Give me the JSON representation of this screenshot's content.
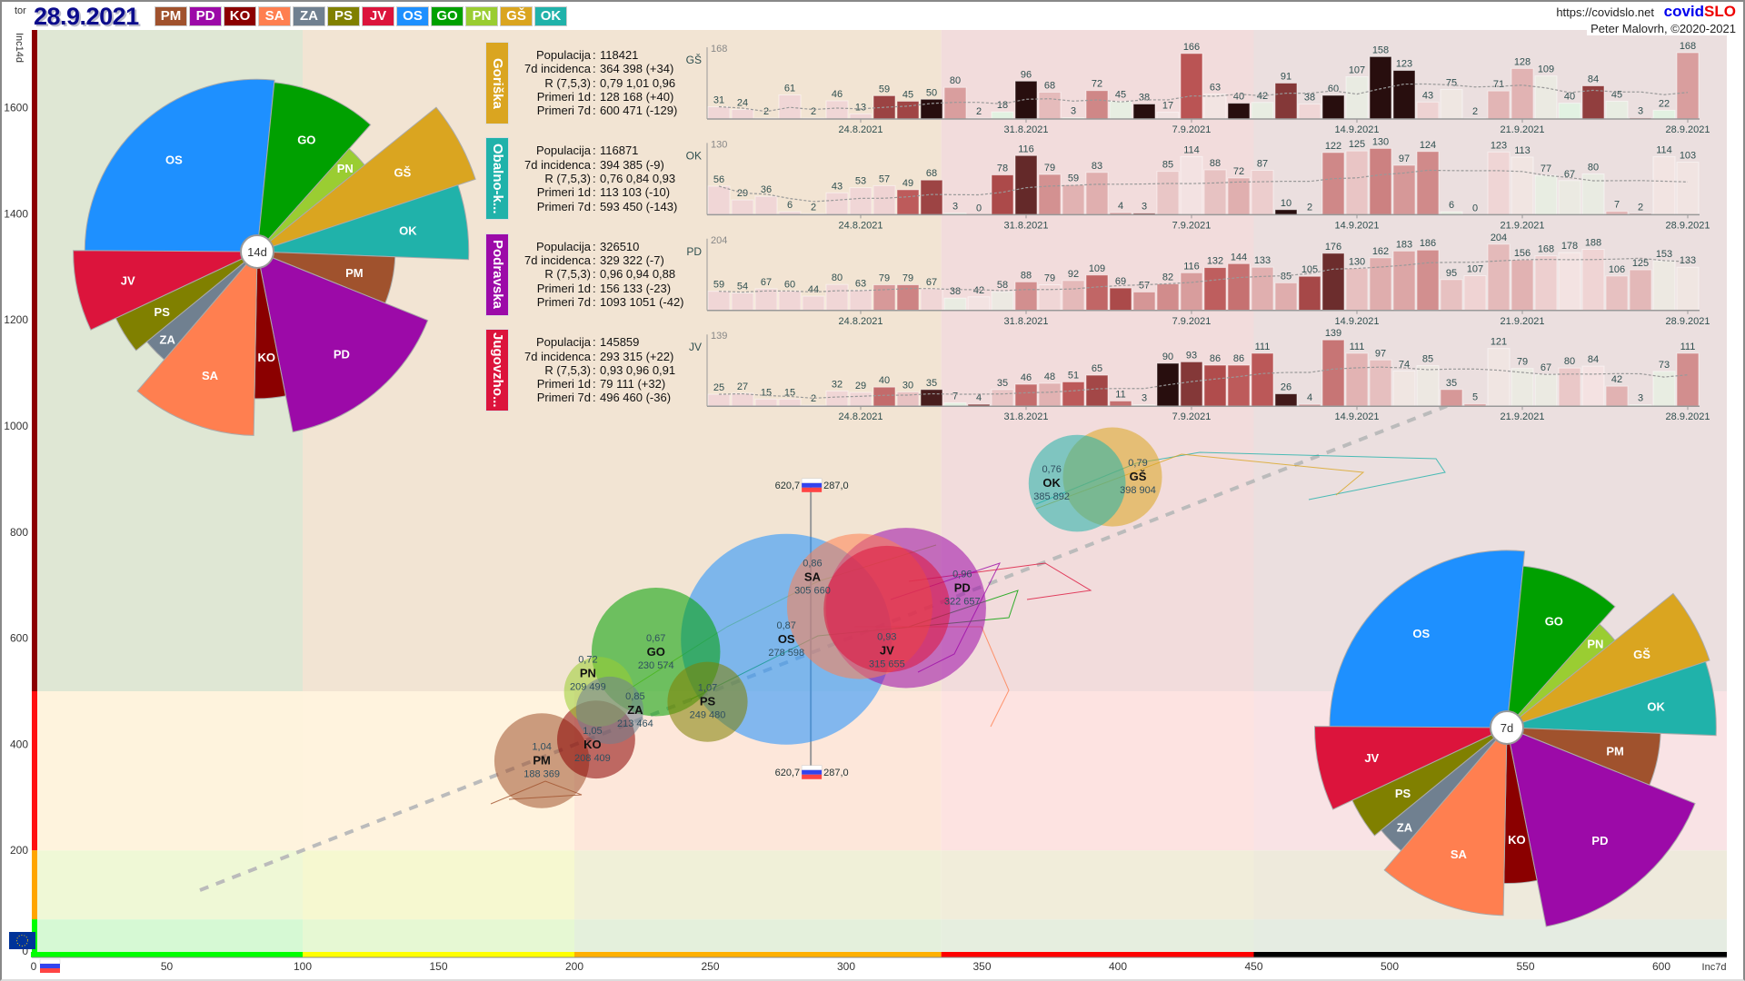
{
  "header": {
    "weekday": "tor",
    "date": "28.9.2021",
    "url": "https://covidslo.net",
    "brand_a": "covid",
    "brand_b": "SLO",
    "author": "Peter Malovrh, ©2020-2021"
  },
  "regions": [
    {
      "code": "PM",
      "color": "#a0522d"
    },
    {
      "code": "PD",
      "color": "#9c0aa8"
    },
    {
      "code": "KO",
      "color": "#8b0000"
    },
    {
      "code": "SA",
      "color": "#ff7f50"
    },
    {
      "code": "ZA",
      "color": "#708090"
    },
    {
      "code": "PS",
      "color": "#808000"
    },
    {
      "code": "JV",
      "color": "#dc143c"
    },
    {
      "code": "OS",
      "color": "#1e90ff"
    },
    {
      "code": "GO",
      "color": "#00a000"
    },
    {
      "code": "PN",
      "color": "#9acd32"
    },
    {
      "code": "GŠ",
      "color": "#daa520"
    },
    {
      "code": "OK",
      "color": "#20b2aa"
    }
  ],
  "chart_data": [
    {
      "type": "scatter",
      "title": "",
      "xlabel": "Inc7d",
      "ylabel": "Inc14d",
      "xlim": [
        0,
        625
      ],
      "ylim": [
        0,
        1700
      ],
      "x_ticks": [
        0,
        50,
        100,
        150,
        200,
        250,
        300,
        350,
        400,
        450,
        500,
        550,
        600
      ],
      "y_ticks": [
        0,
        200,
        400,
        600,
        800,
        1000,
        1200,
        1400,
        1600
      ],
      "bubbles": [
        {
          "code": "OS",
          "r_label": "0,87",
          "x": 278,
          "y": 598,
          "label": "278 598",
          "size_rel": 1.0
        },
        {
          "code": "PD",
          "r_label": "0,96",
          "x": 322,
          "y": 657,
          "label": "322 657",
          "size_rel": 0.76
        },
        {
          "code": "SA",
          "r_label": "0,86",
          "x": 305,
          "y": 660,
          "label": "305 660",
          "size_rel": 0.69
        },
        {
          "code": "GO",
          "r_label": "0,67",
          "x": 230,
          "y": 574,
          "label": "230 574",
          "size_rel": 0.61
        },
        {
          "code": "JV",
          "r_label": "0,93",
          "x": 315,
          "y": 655,
          "label": "315 655",
          "size_rel": 0.6
        },
        {
          "code": "GŠ",
          "r_label": "0,79",
          "x": 398,
          "y": 904,
          "label": "398 904",
          "size_rel": 0.47
        },
        {
          "code": "OK",
          "r_label": "0,76",
          "x": 385,
          "y": 892,
          "label": "385 892",
          "size_rel": 0.46
        },
        {
          "code": "PM",
          "r_label": "1,04",
          "x": 188,
          "y": 369,
          "label": "188 369",
          "size_rel": 0.45
        },
        {
          "code": "PS",
          "r_label": "1,07",
          "x": 249,
          "y": 480,
          "label": "249 480",
          "size_rel": 0.38
        },
        {
          "code": "KO",
          "r_label": "1,05",
          "x": 208,
          "y": 409,
          "label": "208 409",
          "size_rel": 0.37
        },
        {
          "code": "PN",
          "r_label": "0,72",
          "x": 209,
          "y": 499,
          "label": "209 499",
          "size_rel": 0.33
        },
        {
          "code": "ZA",
          "r_label": "0,85",
          "x": 213,
          "y": 464,
          "label": "213 464",
          "size_rel": 0.32
        }
      ],
      "slovenia": {
        "inc14d_label": "620,7",
        "inc7d_label": "287,0",
        "x": 287.0
      },
      "zone_x_breaks": [
        100,
        200,
        335,
        450
      ],
      "zone_y_breaks": [
        70,
        200,
        500
      ]
    },
    {
      "type": "pie",
      "center_label": "14d",
      "slices": [
        {
          "code": "OS",
          "share": 0.266,
          "radius_rel": 0.75
        },
        {
          "code": "GO",
          "share": 0.1,
          "radius_rel": 0.74
        },
        {
          "code": "PN",
          "share": 0.026,
          "radius_rel": 0.6
        },
        {
          "code": "GŠ",
          "share": 0.057,
          "radius_rel": 1.0
        },
        {
          "code": "OK",
          "share": 0.057,
          "radius_rel": 0.92
        },
        {
          "code": "PM",
          "share": 0.055,
          "radius_rel": 0.6
        },
        {
          "code": "PD",
          "share": 0.158,
          "radius_rel": 0.8
        },
        {
          "code": "KO",
          "share": 0.034,
          "radius_rel": 0.64
        },
        {
          "code": "SA",
          "share": 0.11,
          "radius_rel": 0.8
        },
        {
          "code": "ZA",
          "share": 0.028,
          "radius_rel": 0.62
        },
        {
          "code": "PS",
          "share": 0.039,
          "radius_rel": 0.68
        },
        {
          "code": "JV",
          "share": 0.071,
          "radius_rel": 0.8
        }
      ]
    },
    {
      "type": "pie",
      "center_label": "7d",
      "slices": [
        {
          "code": "OS",
          "share": 0.266,
          "radius_rel": 0.83
        },
        {
          "code": "GO",
          "share": 0.1,
          "radius_rel": 0.76
        },
        {
          "code": "PN",
          "share": 0.026,
          "radius_rel": 0.65
        },
        {
          "code": "GŠ",
          "share": 0.057,
          "radius_rel": 1.0
        },
        {
          "code": "OK",
          "share": 0.057,
          "radius_rel": 0.98
        },
        {
          "code": "PM",
          "share": 0.055,
          "radius_rel": 0.72
        },
        {
          "code": "PD",
          "share": 0.158,
          "radius_rel": 0.95
        },
        {
          "code": "KO",
          "share": 0.034,
          "radius_rel": 0.73
        },
        {
          "code": "SA",
          "share": 0.11,
          "radius_rel": 0.88
        },
        {
          "code": "ZA",
          "share": 0.028,
          "radius_rel": 0.76
        },
        {
          "code": "PS",
          "share": 0.039,
          "radius_rel": 0.8
        },
        {
          "code": "JV",
          "share": 0.071,
          "radius_rel": 0.9
        }
      ]
    },
    {
      "type": "bar",
      "date_ticks": [
        {
          "index": 6,
          "label": "24.8.2021"
        },
        {
          "index": 13,
          "label": "31.8.2021"
        },
        {
          "index": 20,
          "label": "7.9.2021"
        },
        {
          "index": 27,
          "label": "14.9.2021"
        },
        {
          "index": 34,
          "label": "21.9.2021"
        },
        {
          "index": 41,
          "label": "28.9.2021"
        }
      ],
      "panels": [
        {
          "name": "Goriška",
          "code": "GŠ",
          "color": "#daa520",
          "max_label": "168",
          "stats": [
            {
              "label": "Populacija",
              "value": "118421"
            },
            {
              "label": "7d incidenca",
              "value": "364 398 (+34)"
            },
            {
              "label": "R (7,5,3)",
              "value": "0,79 1,01 0,96"
            },
            {
              "label": "Primeri 1d",
              "value": "128 168 (+40)"
            },
            {
              "label": "Primeri 7d",
              "value": "600 471 (-129)"
            }
          ],
          "values": [
            31,
            24,
            2,
            61,
            2,
            46,
            13,
            59,
            45,
            50,
            80,
            2,
            18,
            96,
            68,
            3,
            72,
            45,
            38,
            17,
            166,
            63,
            40,
            42,
            91,
            38,
            60,
            107,
            158,
            123,
            43,
            75,
            2,
            71,
            128,
            109,
            40,
            84,
            45,
            3,
            22,
            168
          ]
        },
        {
          "name": "Obalno-k...",
          "code": "OK",
          "color": "#20b2aa",
          "max_label": "130",
          "stats": [
            {
              "label": "Populacija",
              "value": "116871"
            },
            {
              "label": "7d incidenca",
              "value": "394 385 (-9)"
            },
            {
              "label": "R (7,5,3)",
              "value": "0,76 0,84 0,93"
            },
            {
              "label": "Primeri 1d",
              "value": "113 103 (-10)"
            },
            {
              "label": "Primeri 7d",
              "value": "593 450 (-143)"
            }
          ],
          "values": [
            56,
            29,
            36,
            6,
            2,
            43,
            53,
            57,
            49,
            68,
            3,
            0,
            78,
            116,
            79,
            59,
            83,
            4,
            3,
            85,
            114,
            88,
            72,
            87,
            10,
            2,
            122,
            125,
            130,
            97,
            124,
            6,
            0,
            123,
            113,
            77,
            67,
            80,
            7,
            2,
            114,
            103
          ]
        },
        {
          "name": "Podravska",
          "code": "PD",
          "color": "#9c0aa8",
          "max_label": "204",
          "stats": [
            {
              "label": "Populacija",
              "value": "326510"
            },
            {
              "label": "7d incidenca",
              "value": "329 322 (-7)"
            },
            {
              "label": "R (7,5,3)",
              "value": "0,96 0,94 0,88"
            },
            {
              "label": "Primeri 1d",
              "value": "156 133 (-23)"
            },
            {
              "label": "Primeri 7d",
              "value": "1093 1051 (-42)"
            }
          ],
          "values": [
            59,
            54,
            67,
            60,
            44,
            80,
            63,
            79,
            79,
            67,
            38,
            42,
            58,
            88,
            79,
            92,
            109,
            69,
            57,
            82,
            116,
            132,
            144,
            133,
            85,
            105,
            176,
            130,
            162,
            183,
            186,
            95,
            107,
            204,
            156,
            168,
            178,
            188,
            106,
            125,
            153,
            133
          ]
        },
        {
          "name": "Jugovzho...",
          "code": "JV",
          "color": "#dc143c",
          "max_label": "139",
          "stats": [
            {
              "label": "Populacija",
              "value": "145859"
            },
            {
              "label": "7d incidenca",
              "value": "293 315 (+22)"
            },
            {
              "label": "R (7,5,3)",
              "value": "0,93 0,96 0,91"
            },
            {
              "label": "Primeri 1d",
              "value": "79 111 (+32)"
            },
            {
              "label": "Primeri 7d",
              "value": "496 460 (-36)"
            }
          ],
          "values": [
            25,
            27,
            15,
            15,
            2,
            32,
            29,
            40,
            30,
            35,
            7,
            4,
            35,
            46,
            48,
            51,
            65,
            11,
            3,
            90,
            93,
            86,
            86,
            111,
            26,
            4,
            139,
            111,
            97,
            74,
            85,
            35,
            5,
            121,
            79,
            67,
            80,
            84,
            42,
            3,
            73,
            111
          ]
        }
      ]
    }
  ]
}
